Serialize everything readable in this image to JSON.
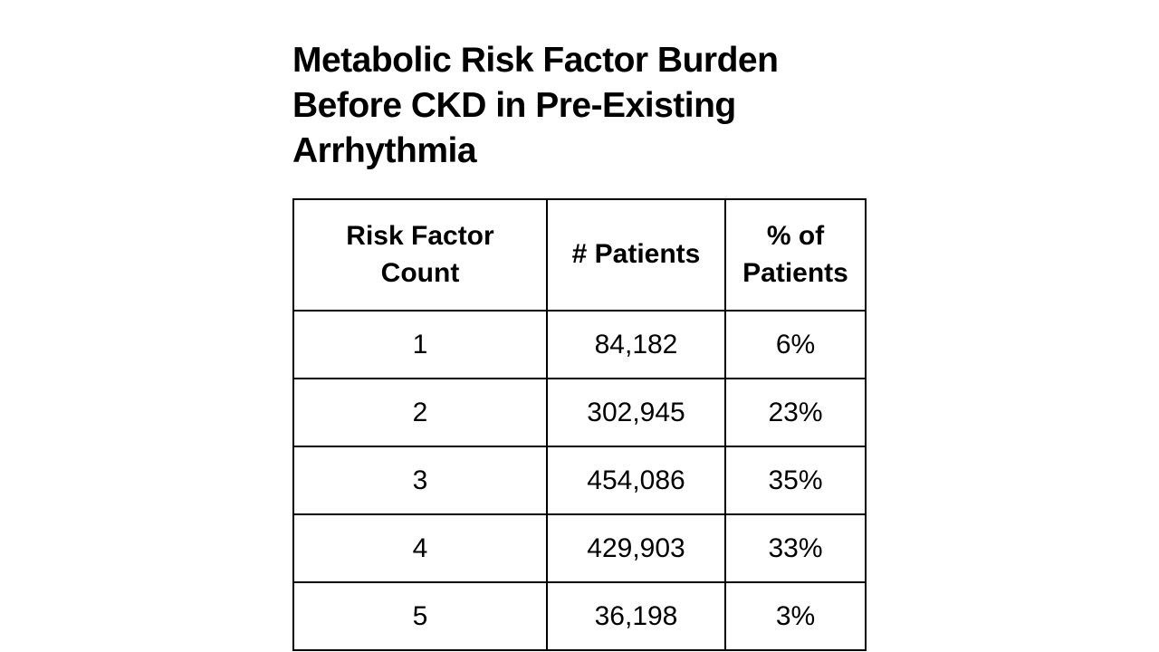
{
  "title": "Metabolic Risk Factor Burden Before CKD in Pre-Existing Arrhythmia",
  "table": {
    "headers": [
      "Risk Factor Count",
      "# Patients",
      "% of Patients"
    ],
    "rows": [
      [
        "1",
        "84,182",
        "6%"
      ],
      [
        "2",
        "302,945",
        "23%"
      ],
      [
        "3",
        "454,086",
        "35%"
      ],
      [
        "4",
        "429,903",
        "33%"
      ],
      [
        "5",
        "36,198",
        "3%"
      ]
    ]
  },
  "chart_data": {
    "type": "table",
    "title": "Metabolic Risk Factor Burden Before CKD in Pre-Existing Arrhythmia",
    "columns": [
      "Risk Factor Count",
      "# Patients",
      "% of Patients"
    ],
    "rows": [
      [
        1,
        84182,
        "6%"
      ],
      [
        2,
        302945,
        "23%"
      ],
      [
        3,
        454086,
        "35%"
      ],
      [
        4,
        429903,
        "33%"
      ],
      [
        5,
        36198,
        "3%"
      ]
    ]
  },
  "colors": {
    "background": "#ffffff",
    "text": "#000000",
    "border": "#000000"
  }
}
